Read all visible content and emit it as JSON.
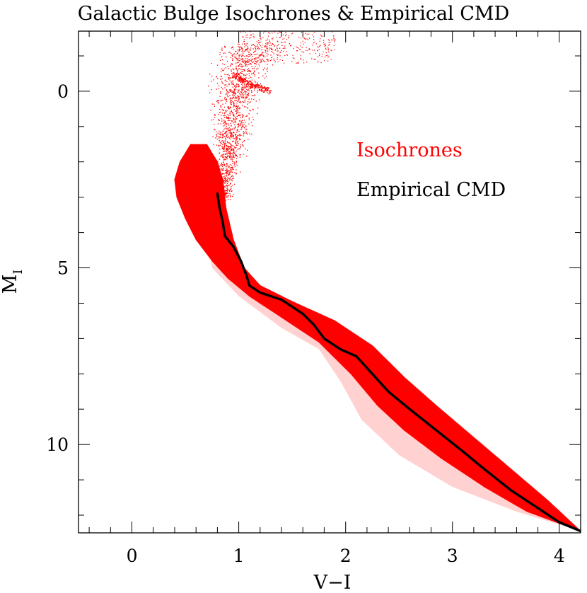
{
  "chart_data": {
    "type": "scatter",
    "title": "Galactic Bulge Isochrones & Empirical CMD",
    "xlabel": "V−I",
    "ylabel_main": "M",
    "ylabel_sub": "I",
    "xlim": [
      -0.5,
      4.2
    ],
    "ylim": [
      12.5,
      -1.7
    ],
    "y_inverted": true,
    "x_major_ticks": [
      0,
      1,
      2,
      3,
      4
    ],
    "x_tick_labels": [
      "0",
      "1",
      "2",
      "3",
      "4"
    ],
    "y_major_ticks": [
      0,
      5,
      10
    ],
    "y_tick_labels": [
      "0",
      "5",
      "10"
    ],
    "legend": {
      "position": "upper-right",
      "entries": [
        {
          "label": "Isochrones",
          "color": "#ff0000"
        },
        {
          "label": "Empirical CMD",
          "color": "#000000"
        }
      ]
    },
    "series": [
      {
        "name": "Isochrones",
        "kind": "dense-band",
        "color": "#ff0000",
        "left_edge": [
          [
            0.55,
            1.5
          ],
          [
            0.45,
            2.0
          ],
          [
            0.4,
            2.5
          ],
          [
            0.42,
            3.0
          ],
          [
            0.5,
            3.6
          ],
          [
            0.6,
            4.2
          ],
          [
            0.75,
            4.8
          ],
          [
            0.9,
            5.3
          ],
          [
            1.1,
            5.8
          ],
          [
            1.4,
            6.4
          ],
          [
            1.75,
            7.1
          ],
          [
            2.05,
            8.0
          ],
          [
            2.3,
            8.9
          ],
          [
            2.55,
            9.6
          ],
          [
            2.9,
            10.4
          ],
          [
            3.3,
            11.2
          ],
          [
            3.7,
            11.9
          ],
          [
            4.2,
            12.45
          ]
        ],
        "right_edge": [
          [
            0.7,
            1.5
          ],
          [
            0.8,
            2.0
          ],
          [
            0.85,
            2.5
          ],
          [
            0.88,
            3.3
          ],
          [
            0.95,
            4.2
          ],
          [
            1.05,
            5.0
          ],
          [
            1.2,
            5.5
          ],
          [
            1.5,
            5.95
          ],
          [
            1.9,
            6.5
          ],
          [
            2.25,
            7.2
          ],
          [
            2.55,
            8.1
          ],
          [
            2.85,
            8.9
          ],
          [
            3.2,
            9.8
          ],
          [
            3.55,
            10.7
          ],
          [
            3.9,
            11.6
          ],
          [
            4.2,
            12.45
          ]
        ],
        "faint_lower_edge": [
          [
            0.75,
            5.0
          ],
          [
            1.0,
            5.8
          ],
          [
            1.4,
            6.7
          ],
          [
            1.75,
            7.3
          ],
          [
            1.95,
            8.2
          ],
          [
            2.15,
            9.3
          ],
          [
            2.5,
            10.3
          ],
          [
            3.0,
            11.2
          ],
          [
            3.6,
            11.9
          ],
          [
            4.2,
            12.45
          ]
        ],
        "giant_branch": [
          [
            0.85,
            3.0
          ],
          [
            0.88,
            2.4
          ],
          [
            0.9,
            1.8
          ],
          [
            0.92,
            1.3
          ],
          [
            0.94,
            0.8
          ],
          [
            0.97,
            0.2
          ],
          [
            1.0,
            -0.3
          ],
          [
            1.05,
            -0.9
          ],
          [
            1.15,
            -1.4
          ]
        ],
        "red_clump": [
          [
            0.95,
            -0.5
          ],
          [
            1.1,
            -0.2
          ],
          [
            1.3,
            0.0
          ]
        ]
      },
      {
        "name": "Empirical CMD",
        "kind": "line",
        "color": "#000000",
        "points": [
          [
            0.8,
            2.9
          ],
          [
            0.82,
            3.3
          ],
          [
            0.85,
            3.7
          ],
          [
            0.87,
            4.1
          ],
          [
            0.95,
            4.4
          ],
          [
            1.02,
            4.8
          ],
          [
            1.07,
            5.2
          ],
          [
            1.1,
            5.5
          ],
          [
            1.2,
            5.7
          ],
          [
            1.4,
            5.9
          ],
          [
            1.6,
            6.3
          ],
          [
            1.7,
            6.6
          ],
          [
            1.8,
            7.0
          ],
          [
            1.95,
            7.3
          ],
          [
            2.1,
            7.5
          ],
          [
            2.25,
            8.0
          ],
          [
            2.4,
            8.5
          ],
          [
            2.6,
            9.0
          ],
          [
            2.85,
            9.6
          ],
          [
            3.1,
            10.2
          ],
          [
            3.3,
            10.7
          ],
          [
            3.55,
            11.3
          ],
          [
            3.8,
            11.8
          ],
          [
            4.0,
            12.2
          ],
          [
            4.2,
            12.45
          ]
        ]
      }
    ]
  }
}
